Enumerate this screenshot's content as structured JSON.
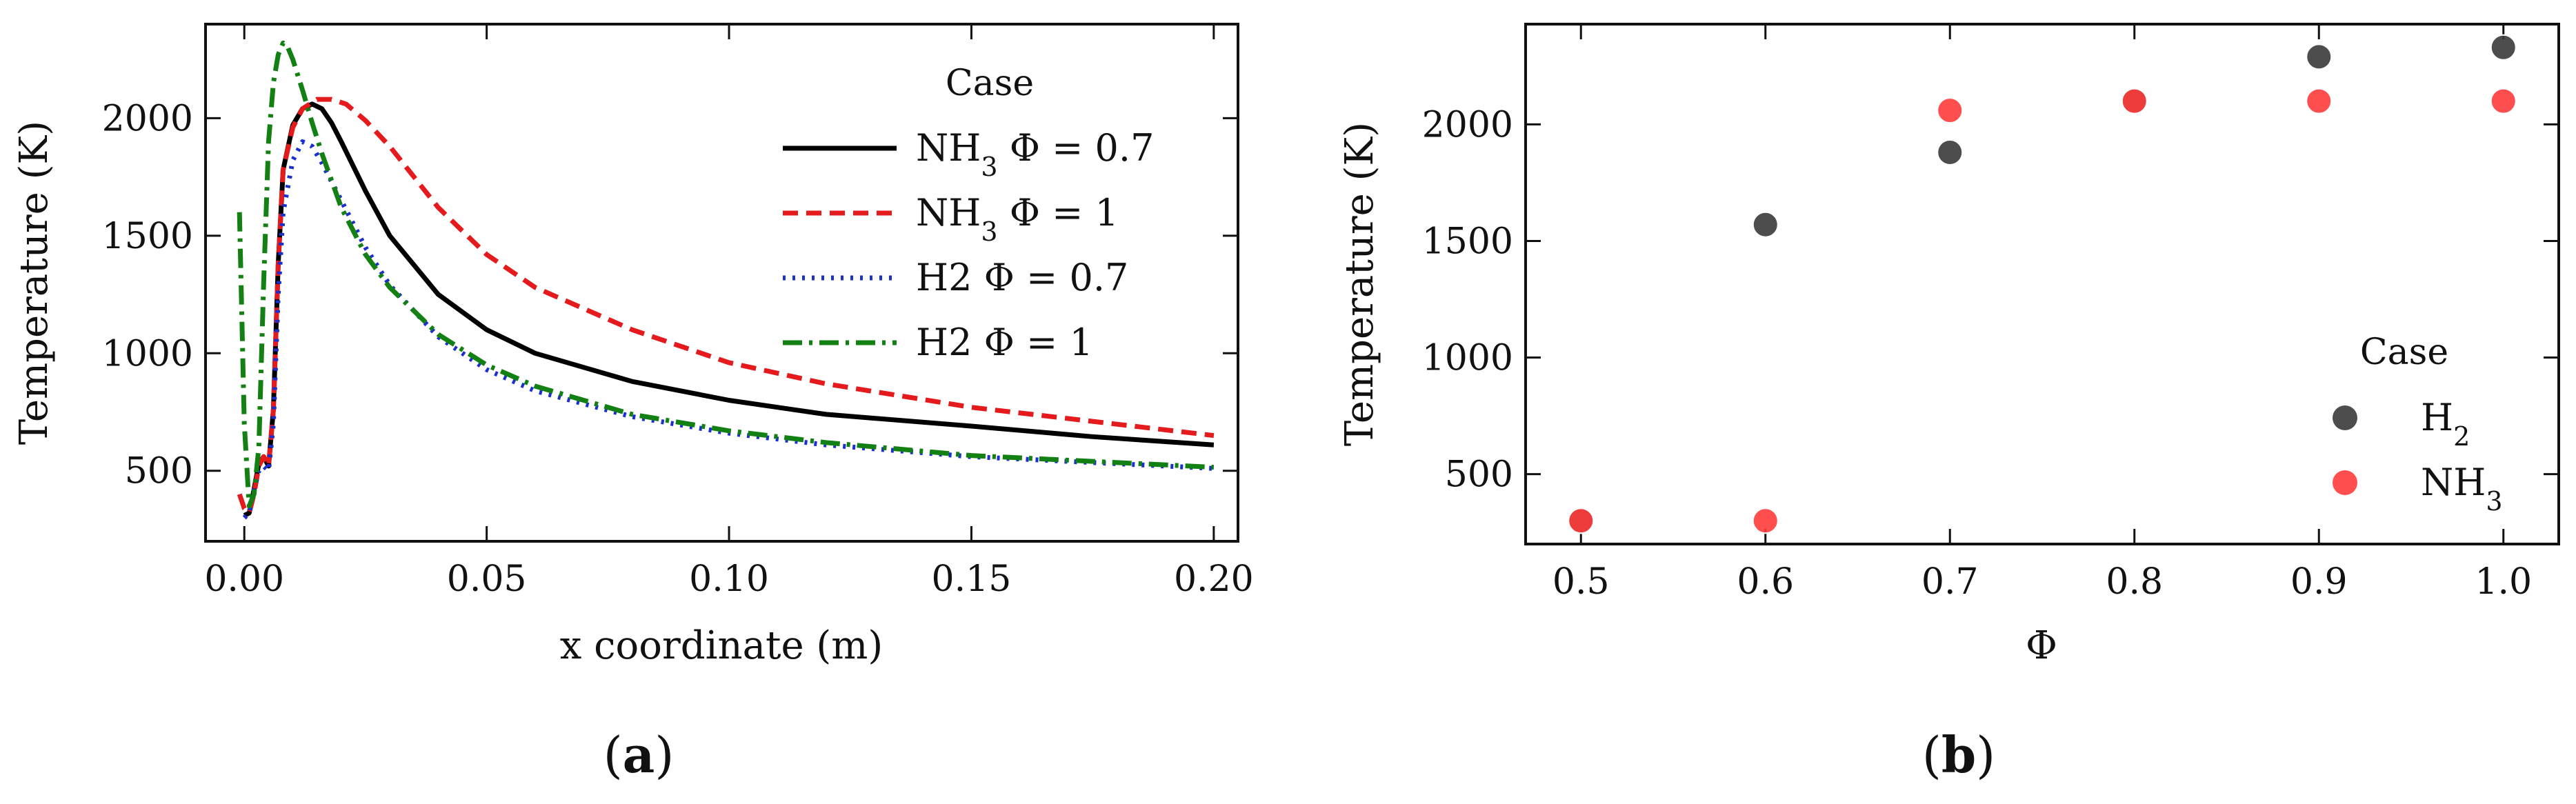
{
  "chart_data": [
    {
      "panel": "a",
      "type": "line",
      "xlabel": "x coordinate (m)",
      "ylabel": "Temperature (K)",
      "xlim": [
        -0.008,
        0.205
      ],
      "ylim": [
        200,
        2400
      ],
      "xticks": [
        0.0,
        0.05,
        0.1,
        0.15,
        0.2
      ],
      "xtick_labels": [
        "0.00",
        "0.05",
        "0.10",
        "0.15",
        "0.20"
      ],
      "yticks": [
        500,
        1000,
        1500,
        2000
      ],
      "ytick_labels": [
        "500",
        "1000",
        "1500",
        "2000"
      ],
      "legend": {
        "title": "Case",
        "position": "top-right",
        "entries": [
          {
            "base": "NH",
            "sub": "3",
            "rest": " Φ = 0.7"
          },
          {
            "base": "NH",
            "sub": "3",
            "rest": " Φ = 1"
          },
          {
            "base": "H2",
            "sub": "",
            "rest": " Φ = 0.7"
          },
          {
            "base": "H2",
            "sub": "",
            "rest": " Φ = 1"
          }
        ]
      },
      "series": [
        {
          "name": "NH3 Φ = 0.7",
          "color": "#000000",
          "dash": "",
          "x": [
            0.0,
            0.001,
            0.002,
            0.003,
            0.004,
            0.005,
            0.006,
            0.007,
            0.008,
            0.01,
            0.012,
            0.014,
            0.016,
            0.018,
            0.02,
            0.025,
            0.03,
            0.04,
            0.05,
            0.06,
            0.08,
            0.1,
            0.12,
            0.15,
            0.175,
            0.2
          ],
          "y": [
            310,
            320,
            420,
            530,
            560,
            520,
            760,
            1380,
            1780,
            1970,
            2040,
            2060,
            2040,
            1980,
            1900,
            1690,
            1500,
            1250,
            1100,
            1000,
            880,
            800,
            740,
            690,
            645,
            610
          ]
        },
        {
          "name": "NH3 Φ = 1",
          "color": "#e41a1c",
          "dash": "22,12",
          "x": [
            -0.001,
            0.0,
            0.001,
            0.002,
            0.003,
            0.004,
            0.005,
            0.006,
            0.007,
            0.008,
            0.01,
            0.012,
            0.015,
            0.018,
            0.021,
            0.025,
            0.03,
            0.04,
            0.05,
            0.06,
            0.08,
            0.1,
            0.12,
            0.15,
            0.175,
            0.2
          ],
          "y": [
            400,
            340,
            320,
            400,
            520,
            560,
            520,
            760,
            1380,
            1780,
            1960,
            2040,
            2080,
            2080,
            2060,
            1990,
            1880,
            1620,
            1420,
            1280,
            1100,
            960,
            870,
            770,
            710,
            650
          ]
        },
        {
          "name": "H2 Φ = 0.7",
          "color": "#1a2fd0",
          "dash": "4,10",
          "x": [
            0.0,
            0.001,
            0.002,
            0.003,
            0.004,
            0.005,
            0.006,
            0.007,
            0.008,
            0.01,
            0.012,
            0.014,
            0.016,
            0.02,
            0.025,
            0.03,
            0.04,
            0.05,
            0.06,
            0.08,
            0.1,
            0.12,
            0.15,
            0.175,
            0.2
          ],
          "y": [
            300,
            320,
            420,
            500,
            520,
            500,
            700,
            1250,
            1600,
            1820,
            1900,
            1880,
            1810,
            1650,
            1450,
            1290,
            1070,
            930,
            840,
            730,
            660,
            610,
            560,
            535,
            510
          ]
        },
        {
          "name": "H2 Φ = 1",
          "color": "#128012",
          "dash": "28,10,5,10",
          "x": [
            -0.001,
            0.0,
            0.001,
            0.002,
            0.003,
            0.004,
            0.005,
            0.006,
            0.007,
            0.008,
            0.009,
            0.01,
            0.012,
            0.014,
            0.016,
            0.02,
            0.025,
            0.03,
            0.04,
            0.05,
            0.06,
            0.08,
            0.1,
            0.12,
            0.15,
            0.175,
            0.2
          ],
          "y": [
            1600,
            700,
            350,
            400,
            600,
            1300,
            1900,
            2150,
            2270,
            2320,
            2300,
            2250,
            2120,
            1980,
            1850,
            1620,
            1420,
            1280,
            1080,
            950,
            860,
            740,
            670,
            620,
            565,
            540,
            515
          ]
        }
      ]
    },
    {
      "panel": "b",
      "type": "scatter",
      "xlabel": "Φ",
      "ylabel": "Temperature (K)",
      "xlim": [
        0.47,
        1.03
      ],
      "ylim": [
        200,
        2430
      ],
      "xticks": [
        0.5,
        0.6,
        0.7,
        0.8,
        0.9,
        1.0
      ],
      "xtick_labels": [
        "0.5",
        "0.6",
        "0.7",
        "0.8",
        "0.9",
        "1.0"
      ],
      "yticks": [
        500,
        1000,
        1500,
        2000
      ],
      "ytick_labels": [
        "500",
        "1000",
        "1500",
        "2000"
      ],
      "legend": {
        "title": "Case",
        "position": "lower-right",
        "entries": [
          {
            "base": "H",
            "sub": "2",
            "rest": ""
          },
          {
            "base": "NH",
            "sub": "3",
            "rest": ""
          }
        ]
      },
      "series": [
        {
          "name": "H2",
          "color": "#3a3a3a",
          "x": [
            0.5,
            0.6,
            0.7,
            0.8,
            0.9,
            1.0
          ],
          "y": [
            300,
            1570,
            1880,
            2100,
            2290,
            2330
          ]
        },
        {
          "name": "NH3",
          "color": "#ff3b3b",
          "x": [
            0.5,
            0.6,
            0.7,
            0.8,
            0.9,
            1.0
          ],
          "y": [
            300,
            300,
            2060,
            2100,
            2100,
            2100
          ]
        }
      ]
    }
  ],
  "panel_labels": {
    "a": {
      "open": "(",
      "letter": "a",
      "close": ")"
    },
    "b": {
      "open": "(",
      "letter": "b",
      "close": ")"
    }
  }
}
